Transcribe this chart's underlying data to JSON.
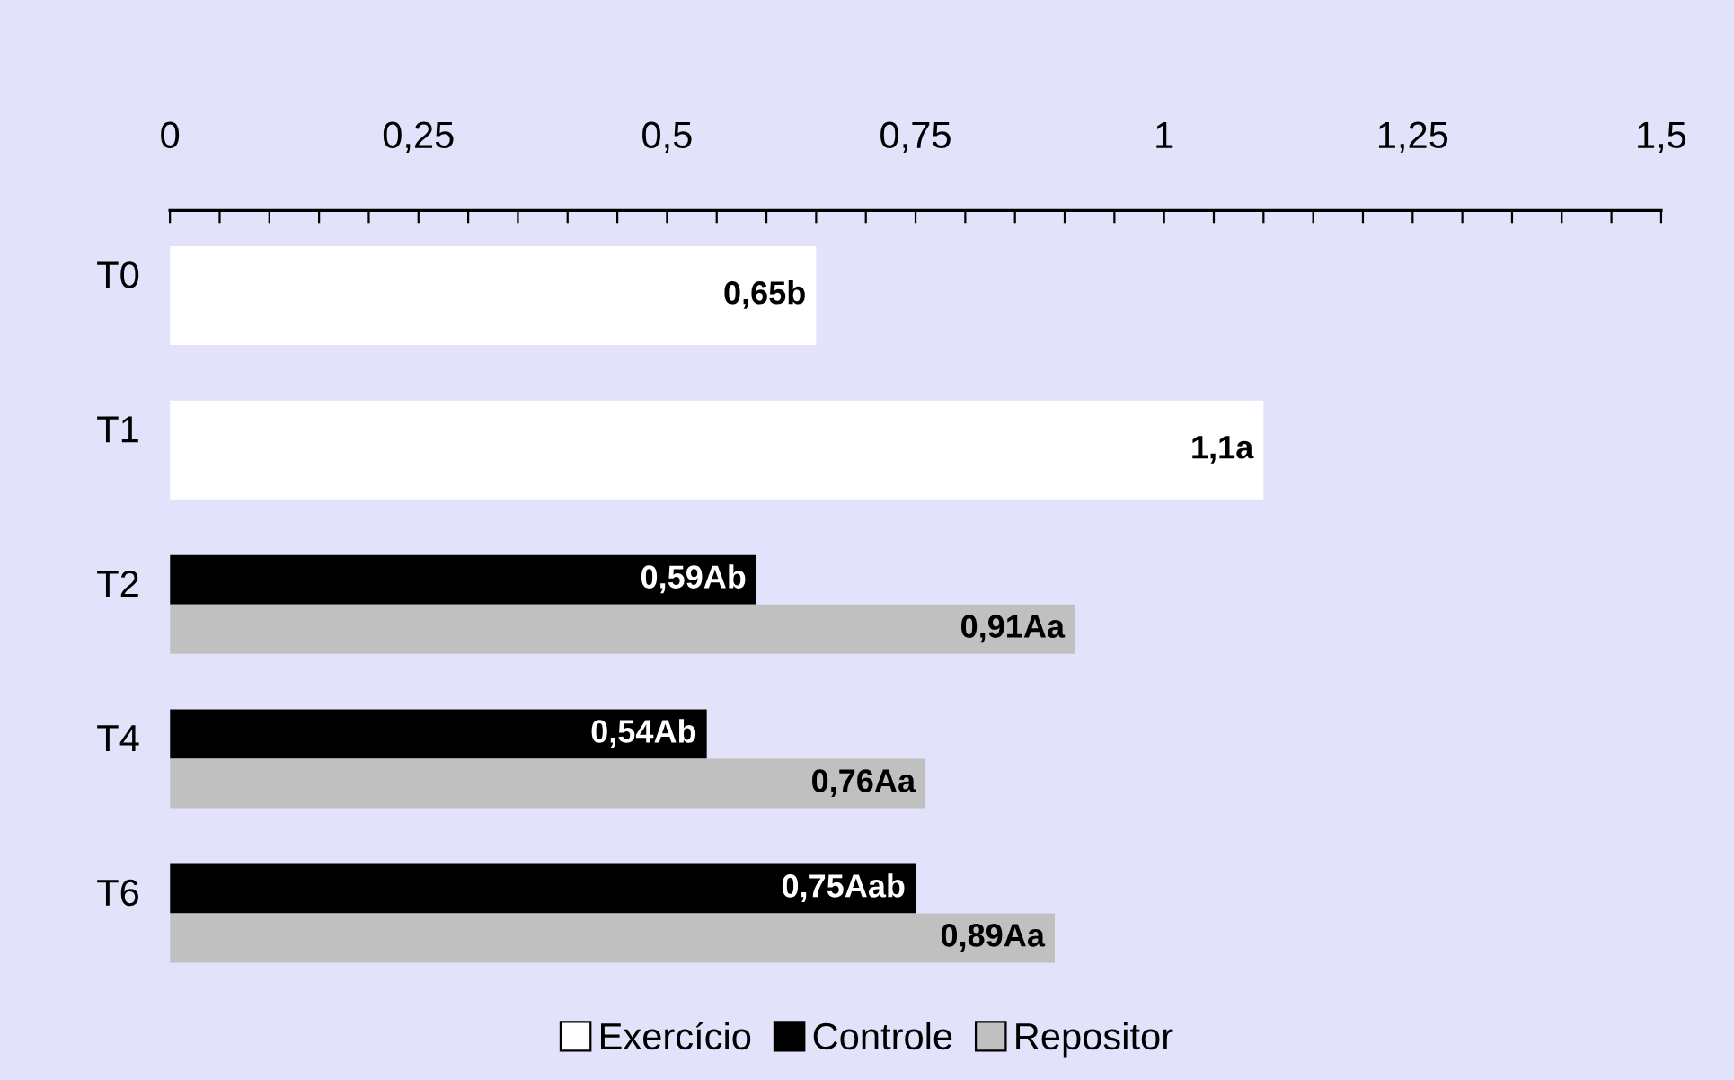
{
  "chart_data": {
    "type": "bar",
    "orientation": "horizontal",
    "categories": [
      "T0",
      "T1",
      "T2",
      "T4",
      "T6"
    ],
    "series": [
      {
        "name": "Exercício",
        "color": "#ffffff",
        "values": [
          0.65,
          1.1,
          null,
          null,
          null
        ],
        "value_labels": [
          "0,65b",
          "1,1a",
          null,
          null,
          null
        ]
      },
      {
        "name": "Controle",
        "color": "#000000",
        "values": [
          null,
          null,
          0.59,
          0.54,
          0.75
        ],
        "value_labels": [
          null,
          null,
          "0,59Ab",
          "0,54Ab",
          "0,75Aab"
        ]
      },
      {
        "name": "Repositor",
        "color": "#c0c0c0",
        "values": [
          null,
          null,
          0.91,
          0.76,
          0.89
        ],
        "value_labels": [
          null,
          null,
          "0,91Aa",
          "0,76Aa",
          "0,89Aa"
        ]
      }
    ],
    "xlim": [
      0,
      1.5
    ],
    "xticks": [
      0,
      {
        "value": 0.05,
        "label": null
      },
      {
        "value": 0.1,
        "label": null
      },
      {
        "value": 0.15,
        "label": null
      },
      {
        "value": 0.2,
        "label": null
      },
      {
        "value": 0.25,
        "label": "0,25"
      },
      {
        "value": 0.3,
        "label": null
      },
      {
        "value": 0.35,
        "label": null
      },
      {
        "value": 0.4,
        "label": null
      },
      {
        "value": 0.45,
        "label": null
      },
      {
        "value": 0.5,
        "label": "0,5"
      },
      {
        "value": 0.55,
        "label": null
      },
      {
        "value": 0.6,
        "label": null
      },
      {
        "value": 0.65,
        "label": null
      },
      {
        "value": 0.7,
        "label": null
      },
      {
        "value": 0.75,
        "label": "0,75"
      },
      {
        "value": 0.8,
        "label": null
      },
      {
        "value": 0.85,
        "label": null
      },
      {
        "value": 0.9,
        "label": null
      },
      {
        "value": 0.95,
        "label": null
      },
      1,
      {
        "value": 1.05,
        "label": null
      },
      {
        "value": 1.1,
        "label": null
      },
      {
        "value": 1.15,
        "label": null
      },
      {
        "value": 1.2,
        "label": null
      },
      {
        "value": 1.25,
        "label": "1,25"
      },
      {
        "value": 1.3,
        "label": null
      },
      {
        "value": 1.35,
        "label": null
      },
      {
        "value": 1.4,
        "label": null
      },
      {
        "value": 1.45,
        "label": null
      },
      {
        "value": 1.5,
        "label": "1,5"
      }
    ],
    "grid": false,
    "legend": "bottom"
  }
}
